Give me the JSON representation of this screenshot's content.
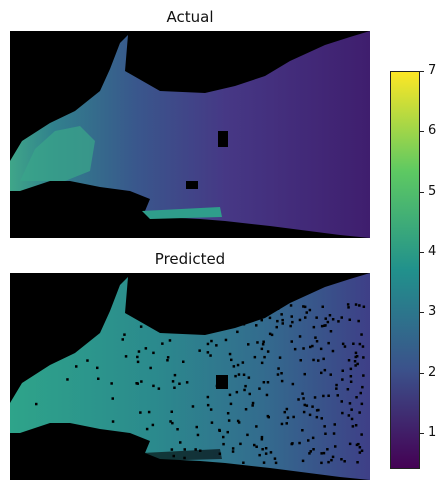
{
  "chart_data": {
    "type": "heatmap",
    "panels": [
      {
        "title": "Actual"
      },
      {
        "title": "Predicted"
      }
    ],
    "colorbar": {
      "range": [
        0.4,
        7
      ],
      "ticks": [
        "1",
        "2",
        "3",
        "4",
        "5",
        "6",
        "7"
      ],
      "colormap": "viridis",
      "colors": [
        "#440154",
        "#3b528b",
        "#21918c",
        "#5ec962",
        "#fde725"
      ]
    },
    "background_color": "#000000"
  }
}
